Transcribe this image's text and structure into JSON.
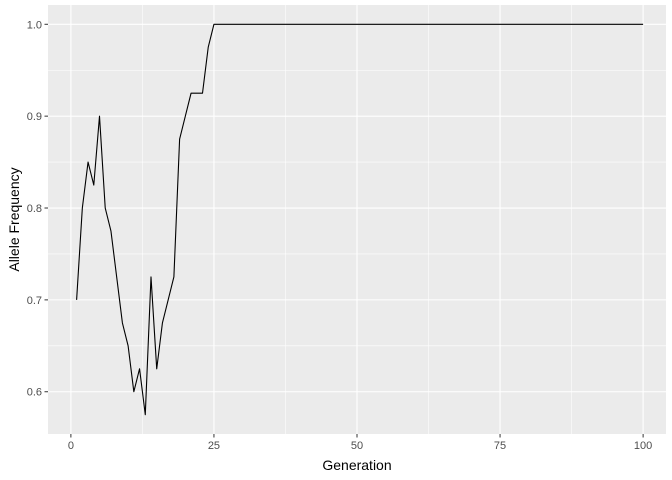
{
  "chart_data": {
    "type": "line",
    "title": "",
    "xlabel": "Generation",
    "ylabel": "Allele Frequency",
    "xlim": [
      -4,
      104
    ],
    "ylim": [
      0.554,
      1.021
    ],
    "x_ticks": [
      0,
      25,
      50,
      75,
      100
    ],
    "x_tick_labels": [
      "0",
      "25",
      "50",
      "75",
      "100"
    ],
    "y_ticks": [
      0.6,
      0.7,
      0.8,
      0.9,
      1.0
    ],
    "y_tick_labels": [
      "0.6",
      "0.7",
      "0.8",
      "0.9",
      "1.0"
    ],
    "grid": true,
    "legend": "none",
    "colors": {
      "panel_background": "#ebebeb",
      "grid": "#ffffff",
      "line": "#000000",
      "tick_text": "#4d4d4d",
      "axis_title": "#000000",
      "tick_mark": "#333333"
    },
    "series": [
      {
        "x": [
          1,
          2,
          3,
          4,
          5,
          6,
          7,
          8,
          9,
          10,
          11,
          12,
          13,
          14,
          15,
          16,
          17,
          18,
          19,
          20,
          21,
          22,
          23,
          24,
          25,
          26,
          30,
          40,
          50,
          60,
          70,
          80,
          90,
          100
        ],
        "y": [
          0.7,
          0.8,
          0.85,
          0.825,
          0.9,
          0.8,
          0.775,
          0.725,
          0.675,
          0.65,
          0.6,
          0.625,
          0.575,
          0.725,
          0.625,
          0.675,
          0.7,
          0.725,
          0.875,
          0.9,
          0.925,
          0.925,
          0.925,
          0.975,
          1.0,
          1.0,
          1.0,
          1.0,
          1.0,
          1.0,
          1.0,
          1.0,
          1.0,
          1.0
        ]
      }
    ]
  }
}
